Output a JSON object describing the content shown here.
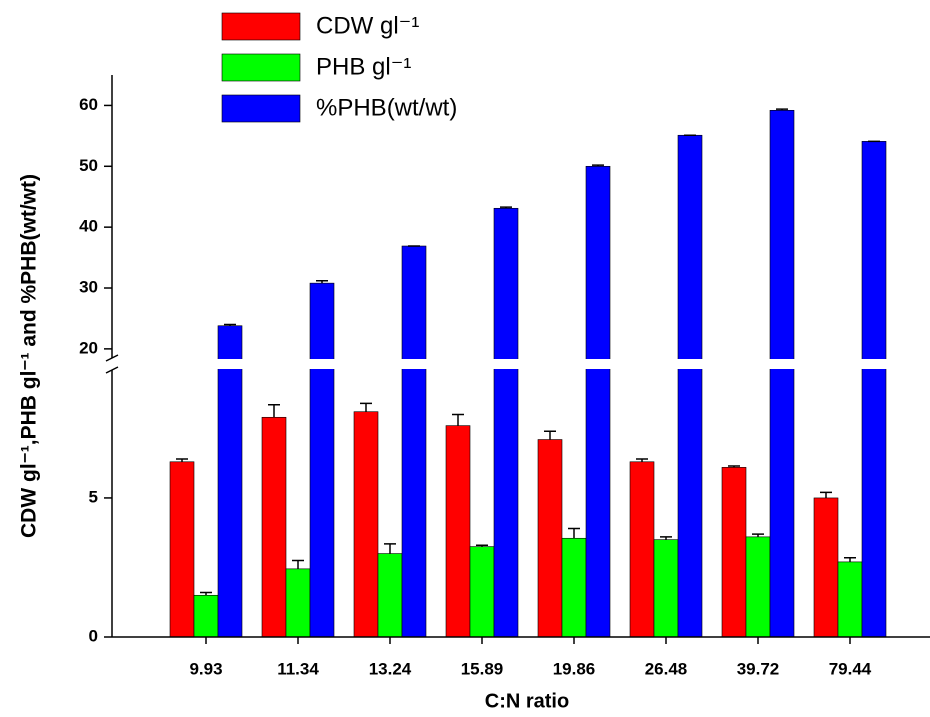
{
  "chart_data": {
    "type": "bar",
    "x_label": "C:N ratio",
    "y_label": "CDW gl⁻¹,PHB gl⁻¹ and %PHB(wt/wt)",
    "categories": [
      "9.93",
      "11.34",
      "13.24",
      "15.89",
      "19.86",
      "26.48",
      "39.72",
      "79.44"
    ],
    "series": [
      {
        "name": "CDW gl⁻¹",
        "color": "#ff0000",
        "values": [
          6.3,
          7.9,
          8.1,
          7.6,
          7.1,
          6.3,
          6.1,
          5.0
        ],
        "errors": [
          0.1,
          0.45,
          0.3,
          0.4,
          0.3,
          0.1,
          0.05,
          0.2
        ]
      },
      {
        "name": "PHB gl⁻¹",
        "color": "#00ff00",
        "values": [
          1.5,
          2.45,
          3.0,
          3.25,
          3.55,
          3.5,
          3.6,
          2.7
        ],
        "errors": [
          0.1,
          0.3,
          0.35,
          0.05,
          0.35,
          0.1,
          0.1,
          0.15
        ]
      },
      {
        "name": "%PHB(wt/wt)",
        "color": "#0000ff",
        "values": [
          23.8,
          30.8,
          36.9,
          43.1,
          50.0,
          55.1,
          59.2,
          54.1
        ],
        "errors": [
          0.2,
          0.4,
          0,
          0.2,
          0.2,
          0,
          0.2,
          0
        ]
      }
    ],
    "ylim": [
      0,
      65
    ],
    "ybreak": [
      9.6,
      18.5
    ],
    "yticks": [
      0,
      5,
      20,
      30,
      40,
      50,
      60
    ],
    "legend": "top-left"
  }
}
